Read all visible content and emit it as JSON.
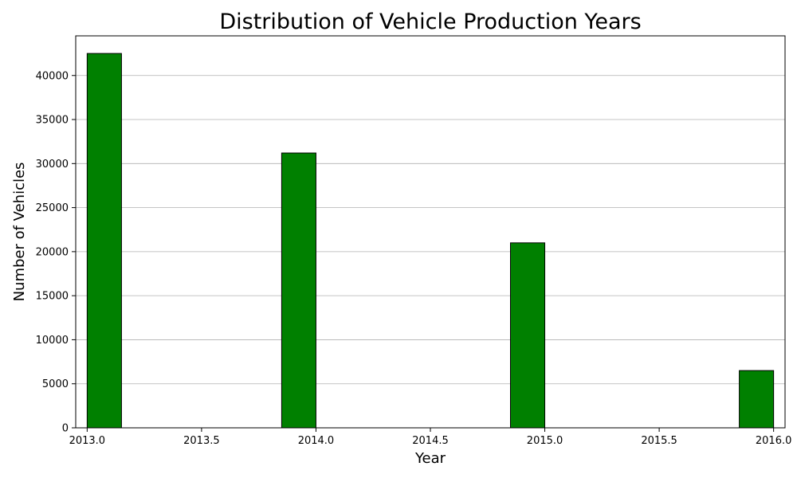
{
  "chart_data": {
    "type": "bar",
    "title": "Distribution of Vehicle Production Years",
    "xlabel": "Year",
    "ylabel": "Number of Vehicles",
    "xlim": [
      2012.95,
      2016.05
    ],
    "ylim": [
      0,
      44500
    ],
    "x_ticks": [
      2013.0,
      2013.5,
      2014.0,
      2014.5,
      2015.0,
      2015.5,
      2016.0
    ],
    "x_tick_labels": [
      "2013.0",
      "2013.5",
      "2014.0",
      "2014.5",
      "2015.0",
      "2015.5",
      "2016.0"
    ],
    "y_ticks": [
      0,
      5000,
      10000,
      15000,
      20000,
      25000,
      30000,
      35000,
      40000
    ],
    "y_tick_labels": [
      "0",
      "5000",
      "10000",
      "15000",
      "20000",
      "25000",
      "30000",
      "35000",
      "40000"
    ],
    "bins": [
      {
        "start": 2013.0,
        "end": 2013.15,
        "value": 42500
      },
      {
        "start": 2013.85,
        "end": 2014.0,
        "value": 31200
      },
      {
        "start": 2014.85,
        "end": 2015.0,
        "value": 21000
      },
      {
        "start": 2015.85,
        "end": 2016.0,
        "value": 6500
      }
    ],
    "bar_color": "#008000",
    "bar_edge_color": "#000000",
    "grid": "y-axis only",
    "legend": "none"
  }
}
